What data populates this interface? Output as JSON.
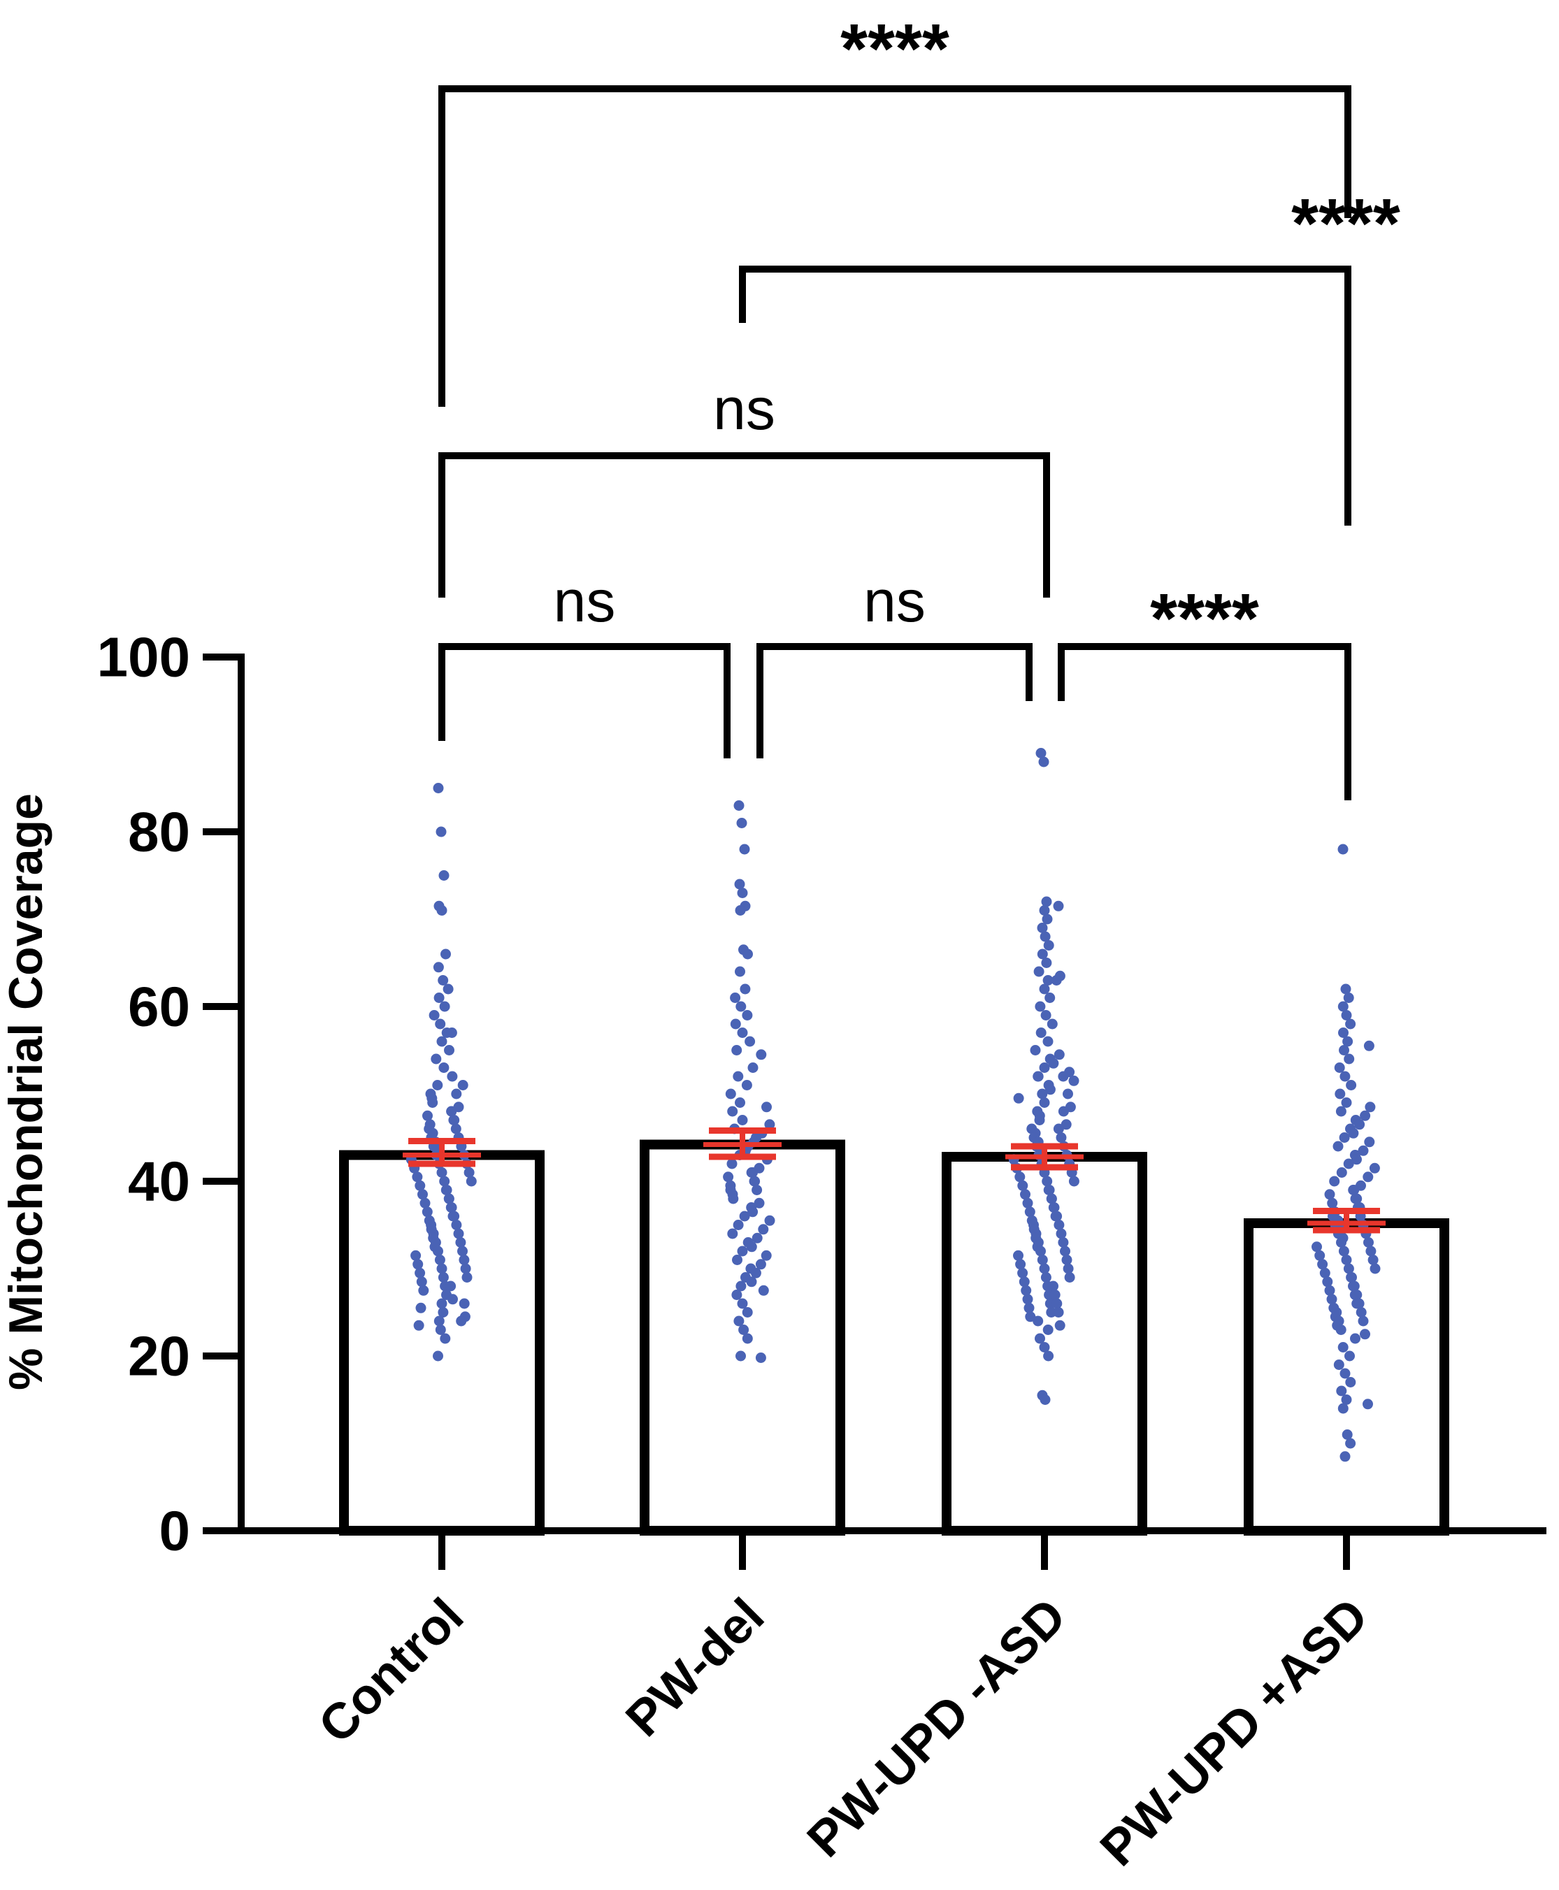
{
  "chart_data": {
    "type": "bar",
    "title": "",
    "xlabel": "",
    "ylabel": "% Mitochondrial Coverage",
    "ylim": [
      0,
      100
    ],
    "yticks": [
      0,
      20,
      40,
      60,
      80,
      100
    ],
    "ytick_labels": [
      "0",
      "20",
      "40",
      "60",
      "80",
      "100"
    ],
    "grid": false,
    "categories": [
      "Control",
      "PW-del",
      "PW-UPD -ASD",
      "PW-UPD +ASD"
    ],
    "values": [
      43,
      44.2,
      42.8,
      35.2
    ],
    "error": [
      {
        "low": 42.0,
        "high": 44.6
      },
      {
        "low": 42.8,
        "high": 45.8
      },
      {
        "low": 41.6,
        "high": 44.0
      },
      {
        "low": 34.4,
        "high": 36.6
      }
    ],
    "points": [
      [
        85,
        80,
        75,
        71.5,
        71,
        66,
        64.5,
        63,
        62,
        61,
        60,
        59,
        58,
        57,
        57,
        56,
        55,
        54,
        53,
        52,
        51,
        51,
        50,
        50,
        49.5,
        49,
        48.5,
        48,
        48,
        47.5,
        47,
        47,
        46.5,
        46,
        46,
        45.5,
        45,
        45,
        44.5,
        44,
        44,
        43.5,
        43,
        43,
        42.5,
        42,
        42,
        41.5,
        41,
        41,
        40.5,
        40,
        40,
        39.5,
        39,
        39,
        38.5,
        38,
        38,
        37.5,
        37,
        37,
        36.5,
        36,
        36,
        35.5,
        35,
        35,
        34.5,
        34,
        34,
        33.5,
        33,
        33,
        32.5,
        32,
        32,
        31.5,
        31,
        31,
        30.5,
        30,
        30,
        29.5,
        29,
        29,
        28.5,
        28,
        28,
        27.5,
        27,
        26.5,
        26,
        26,
        25.5,
        25,
        24.5,
        24,
        24,
        23.5,
        23,
        22,
        20
      ],
      [
        83,
        81,
        78,
        74,
        73,
        71.5,
        71,
        66.5,
        66,
        64,
        62,
        61,
        60,
        59,
        58,
        57,
        56,
        55,
        54.5,
        53,
        52,
        51,
        50,
        49,
        48.5,
        48,
        47,
        46.5,
        46,
        45.5,
        45,
        44.5,
        44,
        43.5,
        43,
        42.5,
        42,
        41.5,
        41,
        41,
        40.5,
        40,
        40,
        39.5,
        39,
        39,
        38.5,
        38,
        37.5,
        37,
        36.5,
        36,
        35.5,
        35,
        34.5,
        34,
        33.5,
        33,
        32.5,
        32,
        31.5,
        31,
        30.5,
        30,
        29.5,
        29,
        28.5,
        28,
        27.5,
        27,
        26,
        25,
        24,
        23,
        22,
        20,
        19.8
      ],
      [
        89,
        88,
        72,
        71.5,
        71,
        70,
        69,
        68,
        67,
        66,
        65,
        64,
        63.5,
        63,
        63,
        62,
        61,
        60,
        59,
        58,
        57,
        56,
        55,
        54.5,
        54,
        53.5,
        53,
        52.5,
        52,
        52,
        52,
        51.5,
        51,
        50.5,
        50,
        50,
        49.5,
        49,
        48.5,
        48,
        48,
        47.5,
        47,
        46.5,
        46,
        46,
        45.5,
        45,
        45,
        44.5,
        44,
        44,
        43.5,
        43,
        43,
        42.5,
        42,
        42,
        41.5,
        41,
        41,
        40.5,
        40,
        40,
        39.5,
        39,
        39,
        38.5,
        38,
        38,
        37.5,
        37,
        37,
        36.5,
        36,
        36,
        35.5,
        35,
        35,
        34.5,
        34,
        34,
        33.5,
        33,
        33,
        32.5,
        32,
        32,
        31.5,
        31,
        31,
        30.5,
        30,
        30,
        29.5,
        29,
        29,
        28.5,
        28,
        28,
        27.5,
        27,
        27,
        26.5,
        26,
        26,
        25.5,
        25,
        25,
        24.5,
        24,
        23.5,
        23,
        22,
        21,
        20,
        15.5,
        15
      ],
      [
        78,
        62,
        61,
        60,
        59,
        58,
        57,
        56,
        55.5,
        55,
        54,
        53,
        52,
        51,
        50,
        49,
        48.5,
        48,
        47.5,
        47,
        46.5,
        46,
        45.5,
        45,
        44.5,
        44,
        43.5,
        43,
        42.5,
        42,
        41.5,
        41,
        40.5,
        40,
        39.5,
        39,
        39,
        38.5,
        38,
        38,
        37.5,
        37,
        37,
        36.5,
        36,
        36,
        35.5,
        35,
        35,
        34.5,
        34,
        34,
        33.5,
        33,
        33,
        32.5,
        32,
        32,
        31.5,
        31,
        31,
        30.5,
        30,
        30,
        29.5,
        29,
        29,
        28.5,
        28,
        28,
        27.5,
        27,
        27,
        26.5,
        26,
        26,
        25.5,
        25,
        25,
        24.5,
        24,
        24,
        23.5,
        23,
        22.5,
        22,
        21,
        20,
        19,
        18,
        17,
        16,
        15,
        14.5,
        14,
        11,
        10,
        8.5
      ]
    ],
    "comparisons": [
      {
        "from": "Control",
        "to": "PW-del",
        "label": "ns"
      },
      {
        "from": "PW-del",
        "to": "PW-UPD -ASD",
        "label": "ns"
      },
      {
        "from": "PW-UPD -ASD",
        "to": "PW-UPD +ASD",
        "label": "****"
      },
      {
        "from": "Control",
        "to": "PW-UPD -ASD",
        "label": "ns"
      },
      {
        "from": "PW-del",
        "to": "PW-UPD +ASD",
        "label": "****"
      },
      {
        "from": "Control",
        "to": "PW-UPD +ASD",
        "label": "****"
      }
    ],
    "colors": {
      "bar_edge": "#000000",
      "bar_fill": "#ffffff",
      "points": "#4a63b5",
      "error": "#e8362c",
      "bracket": "#000000"
    }
  }
}
